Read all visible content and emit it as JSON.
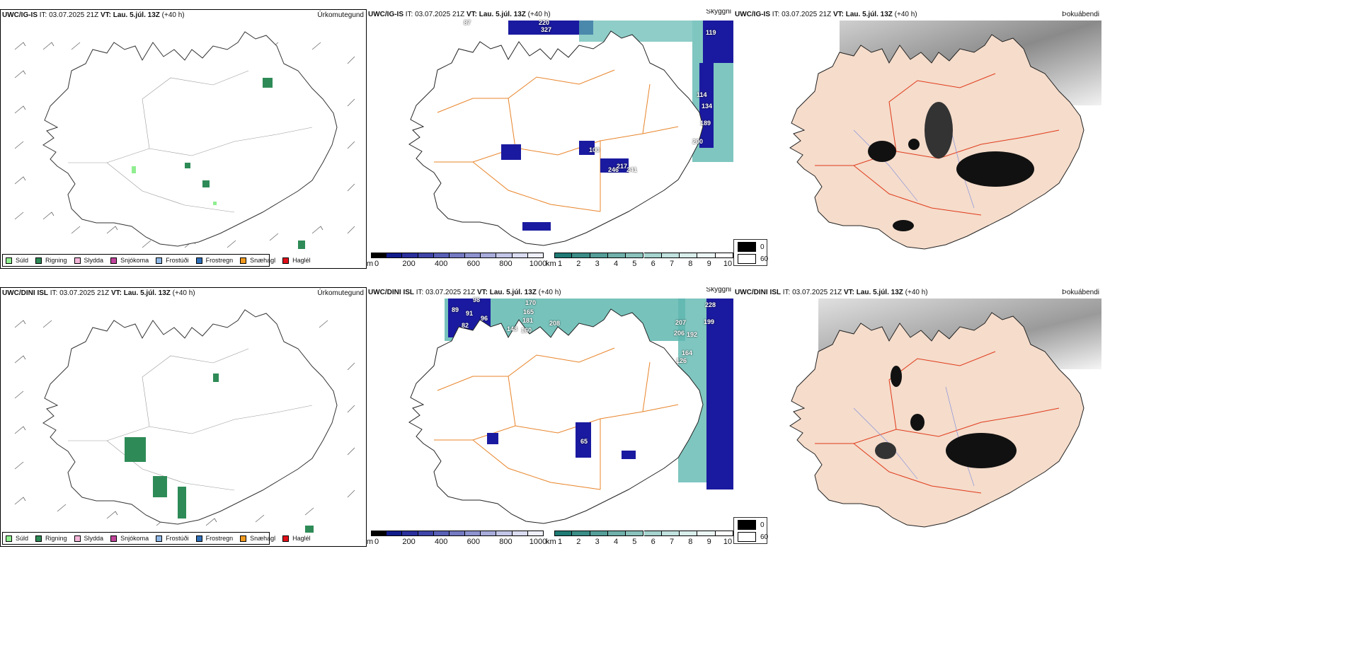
{
  "rows": [
    {
      "model": "UWC/IG-IS",
      "it_label": "IT:",
      "it_value": "03.07.2025 21Z",
      "vt_label": "VT:",
      "vt_value": "Lau. 5.júl. 13Z",
      "lead": "(+40 h)",
      "panel_titles": [
        "Úrkomutegund",
        "Skyggni",
        "Þokuábendi"
      ],
      "visibility_labels": [
        "87",
        "220",
        "327",
        "119",
        "114",
        "134",
        "189",
        "200",
        "246",
        "217",
        "241",
        "100"
      ]
    },
    {
      "model": "UWC/DINI ISL",
      "it_label": "IT:",
      "it_value": "03.07.2025 21Z",
      "vt_label": "VT:",
      "vt_value": "Lau. 5.júl. 13Z",
      "lead": "(+40 h)",
      "panel_titles": [
        "Úrkomutegund",
        "Skyggni",
        "Þokuábendi"
      ],
      "visibility_labels": [
        "98",
        "170",
        "89",
        "91",
        "165",
        "96",
        "181",
        "82",
        "143",
        "160",
        "208",
        "228",
        "207",
        "199",
        "206",
        "192",
        "164",
        "65",
        "126"
      ]
    }
  ],
  "precip_legend": [
    {
      "label": "Súld",
      "color": "#90ee90"
    },
    {
      "label": "Rigning",
      "color": "#2e8b57"
    },
    {
      "label": "Slydda",
      "color": "#f4b6d9"
    },
    {
      "label": "Snjókoma",
      "color": "#c0449a"
    },
    {
      "label": "Frostúði",
      "color": "#8fb8e6"
    },
    {
      "label": "Frostregn",
      "color": "#2f6fb8"
    },
    {
      "label": "Snæhagl",
      "color": "#f09a20"
    },
    {
      "label": "Haglél",
      "color": "#e0101a"
    }
  ],
  "ceiling_colorbar": {
    "unit": "m",
    "ticks": [
      "0",
      "200",
      "400",
      "600",
      "800",
      "1000"
    ],
    "colors": [
      "#000000",
      "#101b8a",
      "#2a2f9c",
      "#3f45a8",
      "#5860b6",
      "#7479c2",
      "#8e93cf",
      "#a8acdb",
      "#c3c6e7",
      "#dadcf1",
      "#eeeffa"
    ]
  },
  "visibility_colorbar": {
    "unit": "km",
    "ticks": [
      "1",
      "2",
      "3",
      "4",
      "5",
      "6",
      "7",
      "8",
      "9",
      "10"
    ],
    "colors": [
      "#1f7a74",
      "#3a8c86",
      "#559e98",
      "#70b0aa",
      "#8bc2bc",
      "#a6d3ce",
      "#c1e2de",
      "#d8eeeb",
      "#ecf7f5",
      "#ffffff"
    ]
  },
  "cloud_key": {
    "items": [
      "0",
      "60"
    ],
    "colors": [
      "#000000",
      "#ffffff"
    ]
  },
  "colors": {
    "land_fog": "#f5dccb",
    "roads_orange": "#e8842a",
    "roads_red": "#e03a1a",
    "rain_green": "#2e8b57",
    "vis_blue": "#1a1aa0",
    "vis_teal": "#5fb8b0"
  }
}
